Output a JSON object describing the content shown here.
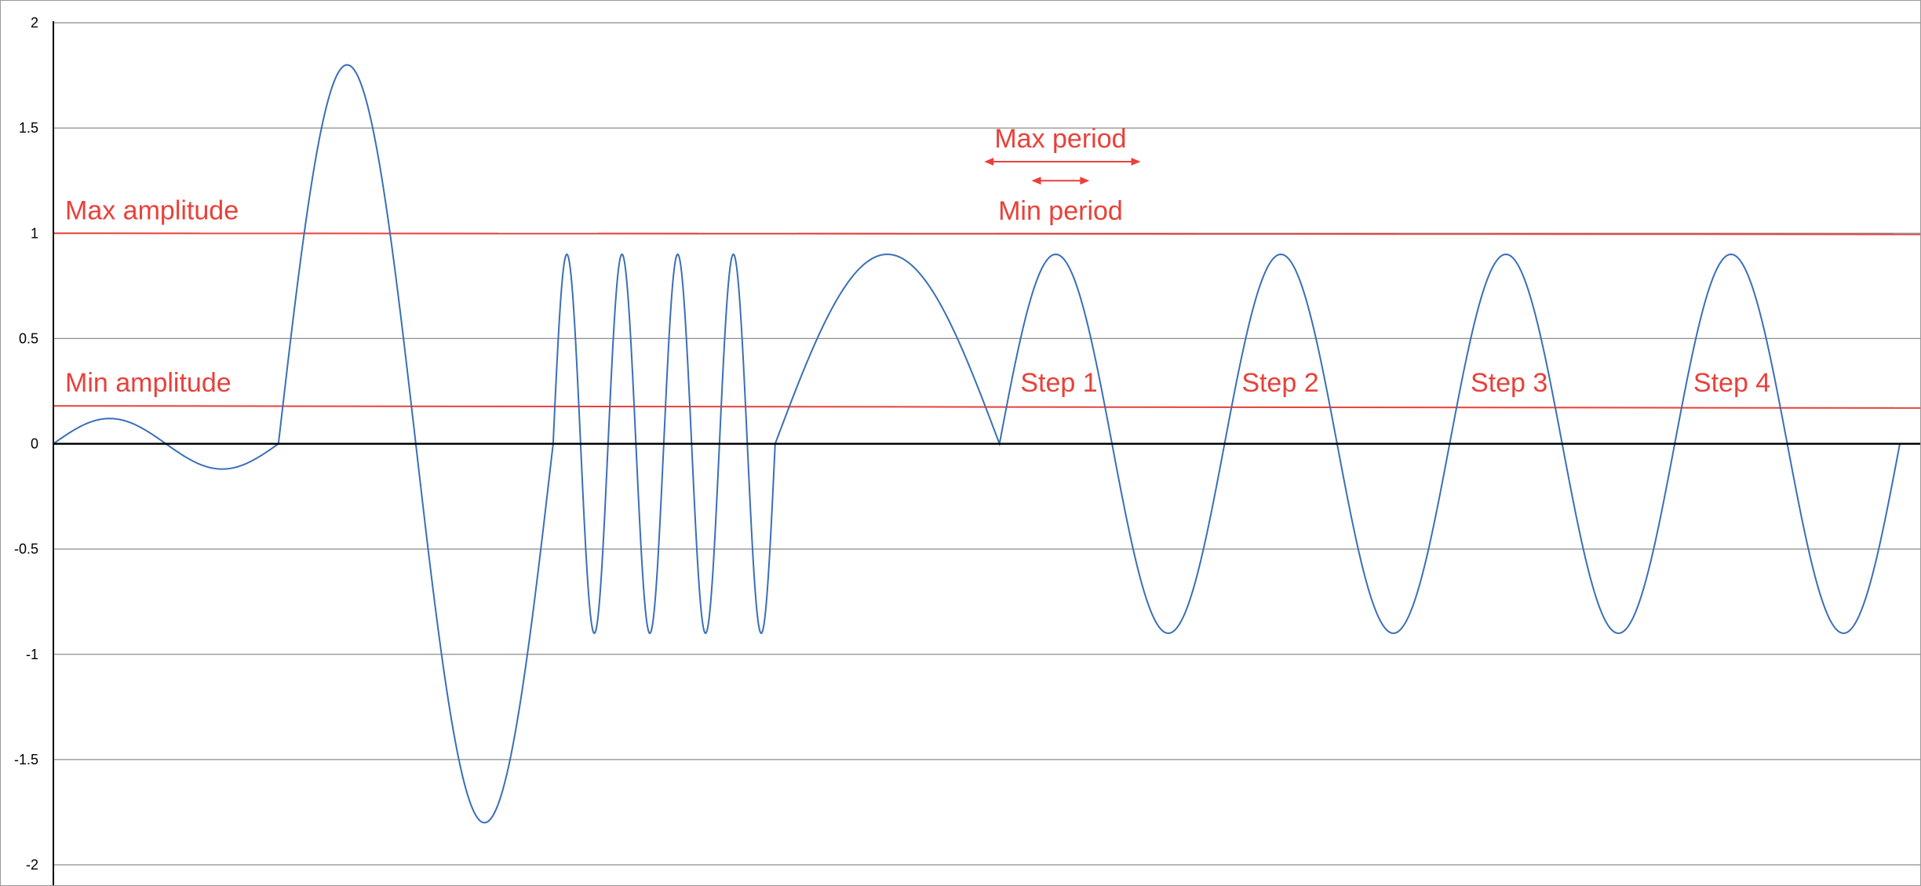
{
  "chart_data": {
    "type": "line",
    "title": "",
    "xlabel": "",
    "ylabel": "",
    "ylim": [
      -2,
      2
    ],
    "y_ticks": [
      2,
      1.5,
      1,
      0.5,
      0,
      -0.5,
      -1,
      -1.5,
      -2
    ],
    "y_tick_labels": [
      "2",
      "1.5",
      "1",
      "0.5",
      "0",
      "-0.5",
      "-1",
      "-1.5",
      "-2"
    ],
    "grid": true,
    "legend": "none",
    "colors": {
      "signal": "#3a6fb8",
      "annotation": "#e8413a",
      "grid": "#8c8c8c",
      "axis": "#000000"
    },
    "segments": [
      {
        "x_start": 0,
        "x_end": 295,
        "amplitude": 0.12,
        "cycles": 1
      },
      {
        "x_start": 295,
        "x_end": 655,
        "amplitude": 1.8,
        "cycles": 1
      },
      {
        "x_start": 655,
        "x_end": 727,
        "amplitude": 0.9,
        "cycles": 1
      },
      {
        "x_start": 727,
        "x_end": 800,
        "amplitude": 0.9,
        "cycles": 1
      },
      {
        "x_start": 800,
        "x_end": 873,
        "amplitude": 0.9,
        "cycles": 1
      },
      {
        "x_start": 873,
        "x_end": 946,
        "amplitude": 0.9,
        "cycles": 1
      },
      {
        "x_start": 946,
        "x_end": 1240,
        "amplitude": 0.9,
        "cycles": 0.5
      },
      {
        "x_start": 1240,
        "x_end": 1535,
        "amplitude": 0.9,
        "cycles": 1
      },
      {
        "x_start": 1535,
        "x_end": 1830,
        "amplitude": 0.9,
        "cycles": 1
      },
      {
        "x_start": 1830,
        "x_end": 2125,
        "amplitude": 0.9,
        "cycles": 1
      },
      {
        "x_start": 2125,
        "x_end": 2420,
        "amplitude": 0.9,
        "cycles": 1
      }
    ],
    "thresholds": [
      {
        "label": "Max amplitude",
        "y_start": 1.0,
        "y_end": 0.995
      },
      {
        "label": "Min amplitude",
        "y_start": 0.18,
        "y_end": 0.17
      }
    ],
    "period_markers": [
      {
        "label": "Max period",
        "x_start": 1220,
        "x_end": 1425,
        "y": 1.34
      },
      {
        "label": "Min period",
        "x_start": 1282,
        "x_end": 1358,
        "y": 1.25
      }
    ],
    "step_labels": [
      {
        "label": "Step 1",
        "x": 1318,
        "y": 0.24
      },
      {
        "label": "Step 2",
        "x": 1608,
        "y": 0.24
      },
      {
        "label": "Step 3",
        "x": 1908,
        "y": 0.24
      },
      {
        "label": "Step 4",
        "x": 2200,
        "y": 0.24
      }
    ]
  }
}
